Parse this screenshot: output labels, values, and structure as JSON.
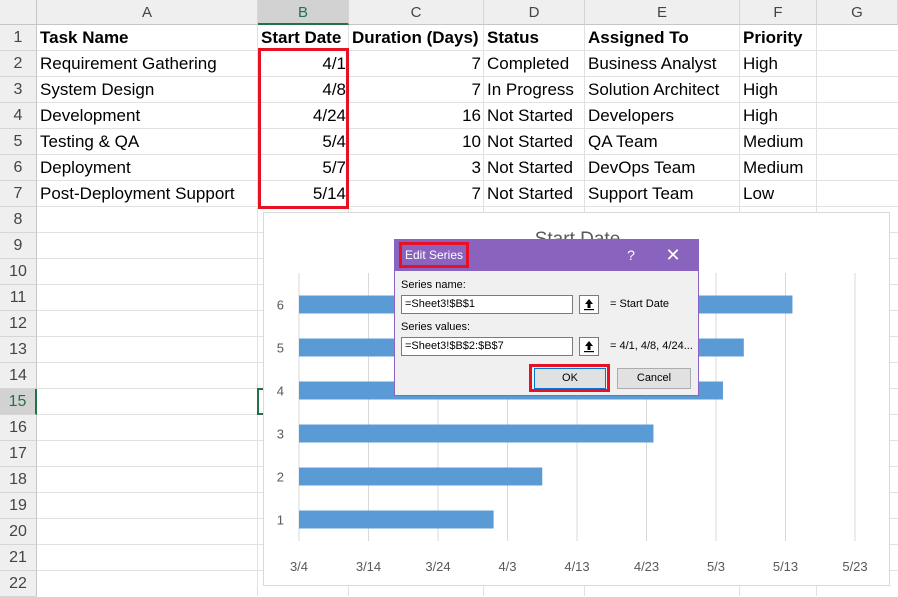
{
  "sheet": {
    "columns": [
      "A",
      "B",
      "C",
      "D",
      "E",
      "F",
      "G"
    ],
    "rows": [
      "1",
      "2",
      "3",
      "4",
      "5",
      "6",
      "7",
      "8",
      "9",
      "10",
      "11",
      "12",
      "13",
      "14",
      "15",
      "16",
      "17",
      "18",
      "19",
      "20",
      "21",
      "22"
    ],
    "headers": [
      "Task Name",
      "Start Date",
      "Duration (Days)",
      "Status",
      "Assigned To",
      "Priority"
    ],
    "data": [
      [
        "Requirement Gathering",
        "4/1",
        "7",
        "Completed",
        "Business Analyst",
        "High"
      ],
      [
        "System Design",
        "4/8",
        "7",
        "In Progress",
        "Solution Architect",
        "High"
      ],
      [
        "Development",
        "4/24",
        "16",
        "Not Started",
        "Developers",
        "High"
      ],
      [
        "Testing & QA",
        "5/4",
        "10",
        "Not Started",
        "QA Team",
        "Medium"
      ],
      [
        "Deployment",
        "5/7",
        "3",
        "Not Started",
        "DevOps Team",
        "Medium"
      ],
      [
        "Post-Deployment Support",
        "5/14",
        "7",
        "Not Started",
        "Support Team",
        "Low"
      ]
    ]
  },
  "chart_data": {
    "type": "bar",
    "orientation": "horizontal",
    "title": "Start Date",
    "categories": [
      "1",
      "2",
      "3",
      "4",
      "5",
      "6"
    ],
    "series": [
      {
        "values": [
          "4/1",
          "4/8",
          "4/24",
          "5/4",
          "5/7",
          "5/14"
        ]
      }
    ],
    "x_ticks": [
      "3/4",
      "3/14",
      "3/24",
      "4/3",
      "4/13",
      "4/23",
      "5/3",
      "5/13",
      "5/23"
    ],
    "x_ticks_days": [
      0,
      10,
      20,
      30,
      40,
      50,
      60,
      70,
      80
    ],
    "values_days": [
      28,
      35,
      51,
      61,
      64,
      71
    ],
    "xlim_days": [
      0,
      80
    ],
    "bar_color": "#5b9bd5",
    "grid": true
  },
  "dialog": {
    "title": "Edit Series",
    "help": "?",
    "close": "✕",
    "series_name_label": "Series name:",
    "series_name_value": "=Sheet3!$B$1",
    "series_name_preview": "= Start Date",
    "series_values_label": "Series values:",
    "series_values_value": "=Sheet3!$B$2:$B$7",
    "series_values_preview": "= 4/1, 4/8, 4/24...",
    "ok_label": "OK",
    "cancel_label": "Cancel"
  },
  "colors": {
    "dialog_titlebar": "#8a63bf",
    "highlight": "#e81123",
    "excel_green": "#217346"
  }
}
